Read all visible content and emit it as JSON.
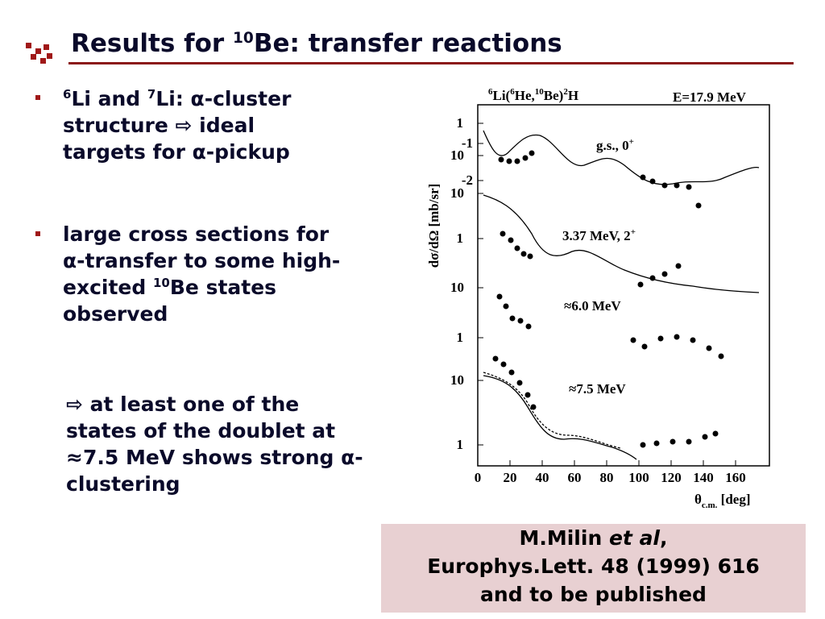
{
  "header": {
    "title_pre": "Results for ",
    "title_sup": "10",
    "title_post": "Be: transfer reactions"
  },
  "bullets": [
    {
      "parts": [
        {
          "sup": "6"
        },
        {
          "text": "Li and "
        },
        {
          "sup": "7"
        },
        {
          "text": "Li: α-cluster structure ⇨ ideal targets for α-pickup"
        }
      ]
    },
    {
      "parts": [
        {
          "text": "large cross sections for α-transfer to some high-excited "
        },
        {
          "sup": "10"
        },
        {
          "text": "Be states observed"
        }
      ]
    }
  ],
  "conclusion": "⇨ at least one of the states of the doublet at ≈7.5 MeV shows strong α-clustering",
  "figure": {
    "reaction": [
      {
        "sup": "6"
      },
      {
        "text": "Li("
      },
      {
        "sup": "6"
      },
      {
        "text": "He,"
      },
      {
        "sup": "10"
      },
      {
        "text": "Be)"
      },
      {
        "sup": "2"
      },
      {
        "text": "H"
      }
    ],
    "energy": "E=17.9 MeV",
    "y_label": "dσ/dΩ [mb/sr]",
    "x_label_main": "θ",
    "x_label_sub": "c.m.",
    "x_label_unit": " [deg]",
    "xticks": [
      0,
      20,
      40,
      60,
      80,
      100,
      120,
      140,
      160
    ],
    "ylabels": [
      "1",
      "-1",
      "10",
      "-2",
      "10",
      "1",
      "10",
      "1",
      "10",
      "1"
    ],
    "panels": [
      "g.s., 0",
      "+",
      "3.37 MeV, 2",
      "+",
      "≈6.0 MeV",
      "≈7.5 MeV"
    ]
  },
  "citation": {
    "author": "M.Milin ",
    "etal": "et al",
    "comma": ",",
    "journal": "Europhys.Lett. 48 (1999) 616",
    "note": "and to be published"
  }
}
